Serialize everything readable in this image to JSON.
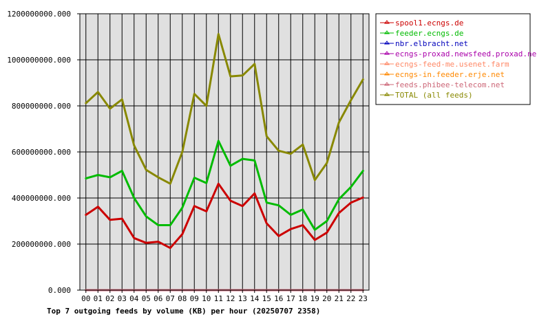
{
  "chart_data": {
    "type": "line",
    "title": "Top 7 outgoing feeds by volume (KB) per hour (20250707 2358)",
    "categories": [
      "00",
      "01",
      "02",
      "03",
      "04",
      "05",
      "06",
      "07",
      "08",
      "09",
      "10",
      "11",
      "12",
      "13",
      "14",
      "15",
      "16",
      "17",
      "18",
      "19",
      "20",
      "21",
      "22",
      "23"
    ],
    "ylim": [
      0,
      1200000000
    ],
    "yticks": [
      0,
      200000000,
      400000000,
      600000000,
      800000000,
      1000000000,
      1200000000
    ],
    "ytick_labels": [
      "0.000",
      "200000000.000",
      "400000000.000",
      "600000000.000",
      "800000000.000",
      "1000000000.000",
      "1200000000.000"
    ],
    "grid": true,
    "legend_position": "right",
    "series": [
      {
        "name": "spool1.ecngs.de",
        "color": "#cc0000",
        "values": [
          327000000,
          362000000,
          305000000,
          310000000,
          226000000,
          205000000,
          210000000,
          183000000,
          243000000,
          365000000,
          342000000,
          462000000,
          388000000,
          365000000,
          420000000,
          290000000,
          235000000,
          265000000,
          282000000,
          218000000,
          250000000,
          335000000,
          380000000,
          402000000
        ]
      },
      {
        "name": "feeder.ecngs.de",
        "color": "#00bb00",
        "values": [
          485000000,
          500000000,
          490000000,
          518000000,
          400000000,
          320000000,
          282000000,
          282000000,
          358000000,
          488000000,
          465000000,
          648000000,
          540000000,
          570000000,
          563000000,
          380000000,
          368000000,
          327000000,
          350000000,
          262000000,
          300000000,
          395000000,
          448000000,
          518000000
        ]
      },
      {
        "name": "nbr.elbracht.net",
        "color": "#0000bb",
        "values": [
          0,
          0,
          0,
          0,
          0,
          0,
          0,
          0,
          0,
          0,
          0,
          0,
          0,
          0,
          0,
          0,
          0,
          0,
          0,
          0,
          0,
          0,
          0,
          0
        ]
      },
      {
        "name": "ecngs-proxad.newsfeed.proxad.net",
        "color": "#aa00aa",
        "values": [
          0,
          0,
          0,
          0,
          0,
          0,
          0,
          0,
          0,
          0,
          0,
          0,
          0,
          0,
          0,
          0,
          0,
          0,
          0,
          0,
          0,
          0,
          0,
          0
        ]
      },
      {
        "name": "ecngs-feed-me.usenet.farm",
        "color": "#ff8866",
        "values": [
          0,
          0,
          0,
          0,
          0,
          0,
          0,
          0,
          0,
          0,
          0,
          0,
          0,
          0,
          0,
          0,
          0,
          0,
          0,
          0,
          0,
          0,
          0,
          0
        ]
      },
      {
        "name": "ecngs-in.feeder.erje.net",
        "color": "#ff8800",
        "values": [
          0,
          0,
          0,
          0,
          0,
          0,
          0,
          0,
          0,
          0,
          0,
          0,
          0,
          0,
          0,
          0,
          0,
          0,
          0,
          0,
          0,
          0,
          0,
          0
        ]
      },
      {
        "name": "feeds.phibee-telecom.net",
        "color": "#cc6677",
        "values": [
          0,
          0,
          0,
          0,
          0,
          0,
          0,
          0,
          0,
          0,
          0,
          0,
          0,
          0,
          0,
          0,
          0,
          0,
          0,
          0,
          0,
          0,
          0,
          0
        ]
      },
      {
        "name": "TOTAL (all feeds)",
        "color": "#888800",
        "values": [
          812000000,
          860000000,
          788000000,
          828000000,
          628000000,
          522000000,
          490000000,
          462000000,
          600000000,
          852000000,
          800000000,
          1112000000,
          928000000,
          932000000,
          982000000,
          668000000,
          605000000,
          592000000,
          632000000,
          478000000,
          552000000,
          728000000,
          825000000,
          915000000
        ]
      }
    ]
  }
}
